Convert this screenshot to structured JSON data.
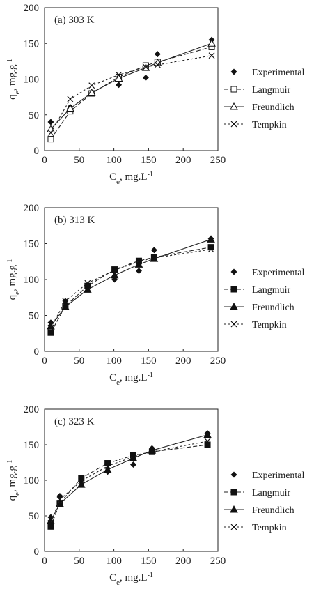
{
  "chart_data": [
    {
      "type": "scatter",
      "panel_label": "(a) 303 K",
      "xlabel": "C_e, mg.L^-1",
      "ylabel": "q_e, mg.g^-1",
      "xlim": [
        0,
        250
      ],
      "ylim": [
        0,
        200
      ],
      "xticks": [
        "0",
        "50",
        "100",
        "150",
        "200",
        "250"
      ],
      "yticks": [
        "0",
        "50",
        "100",
        "150",
        "200"
      ],
      "series": [
        {
          "name": "Experimental",
          "marker": "diamond",
          "line": "none",
          "x": [
            9,
            37,
            68,
            107,
            146,
            163,
            241
          ],
          "y": [
            40,
            61,
            80,
            92,
            102,
            135,
            155
          ]
        },
        {
          "name": "Langmuir",
          "marker": "square-open",
          "line": "dashed",
          "x": [
            9,
            37,
            68,
            107,
            146,
            163,
            241
          ],
          "y": [
            16,
            55,
            80,
            103,
            119,
            124,
            145
          ]
        },
        {
          "name": "Freundlich",
          "marker": "triangle-open",
          "line": "solid",
          "x": [
            9,
            37,
            68,
            107,
            146,
            163,
            241
          ],
          "y": [
            30,
            59,
            81,
            101,
            116,
            123,
            150
          ]
        },
        {
          "name": "Tempkin",
          "marker": "x",
          "line": "dotted",
          "x": [
            9,
            37,
            68,
            107,
            146,
            163,
            241
          ],
          "y": [
            25,
            72,
            91,
            106,
            117,
            120,
            133
          ]
        }
      ]
    },
    {
      "type": "scatter",
      "panel_label": "(b) 313 K",
      "xlabel": "C_e, mg.L^-1",
      "ylabel": "q_e, mg.g^-1",
      "xlim": [
        0,
        250
      ],
      "ylim": [
        0,
        200
      ],
      "xticks": [
        "0",
        "50",
        "100",
        "150",
        "200",
        "250"
      ],
      "yticks": [
        "0",
        "50",
        "100",
        "150",
        "200"
      ],
      "series": [
        {
          "name": "Experimental",
          "marker": "diamond",
          "line": "none",
          "x": [
            9,
            30,
            62,
            101,
            136,
            158,
            240
          ],
          "y": [
            40,
            70,
            90,
            100,
            112,
            141,
            157
          ]
        },
        {
          "name": "Langmuir",
          "marker": "square",
          "line": "dashed",
          "x": [
            9,
            30,
            62,
            101,
            136,
            158,
            240
          ],
          "y": [
            26,
            63,
            91,
            114,
            126,
            131,
            145
          ]
        },
        {
          "name": "Freundlich",
          "marker": "triangle",
          "line": "solid",
          "x": [
            9,
            30,
            62,
            101,
            136,
            158,
            240
          ],
          "y": [
            35,
            62,
            86,
            106,
            121,
            129,
            156
          ]
        },
        {
          "name": "Tempkin",
          "marker": "x",
          "line": "dotted",
          "x": [
            9,
            30,
            62,
            101,
            136,
            158,
            240
          ],
          "y": [
            33,
            70,
            95,
            113,
            125,
            130,
            142
          ]
        }
      ]
    },
    {
      "type": "scatter",
      "panel_label": "(c) 323 K",
      "xlabel": "C_e, mg.L^-1",
      "ylabel": "q_e, mg.g^-1",
      "xlim": [
        0,
        250
      ],
      "ylim": [
        0,
        200
      ],
      "xticks": [
        "0",
        "50",
        "100",
        "150",
        "200",
        "250"
      ],
      "yticks": [
        "0",
        "50",
        "100",
        "150",
        "200"
      ],
      "series": [
        {
          "name": "Experimental",
          "marker": "diamond",
          "line": "none",
          "x": [
            9,
            22,
            53,
            91,
            128,
            155,
            235
          ],
          "y": [
            48,
            78,
            100,
            112,
            122,
            145,
            166
          ]
        },
        {
          "name": "Langmuir",
          "marker": "square",
          "line": "dashed",
          "x": [
            9,
            22,
            53,
            91,
            128,
            155,
            235
          ],
          "y": [
            35,
            68,
            103,
            124,
            135,
            140,
            150
          ]
        },
        {
          "name": "Freundlich",
          "marker": "triangle",
          "line": "solid",
          "x": [
            9,
            22,
            53,
            91,
            128,
            155,
            235
          ],
          "y": [
            43,
            67,
            94,
            115,
            131,
            142,
            164
          ]
        },
        {
          "name": "Tempkin",
          "marker": "x",
          "line": "dotted",
          "x": [
            9,
            22,
            53,
            91,
            128,
            155,
            235
          ],
          "y": [
            40,
            73,
            99,
            120,
            133,
            140,
            155
          ]
        }
      ]
    }
  ]
}
